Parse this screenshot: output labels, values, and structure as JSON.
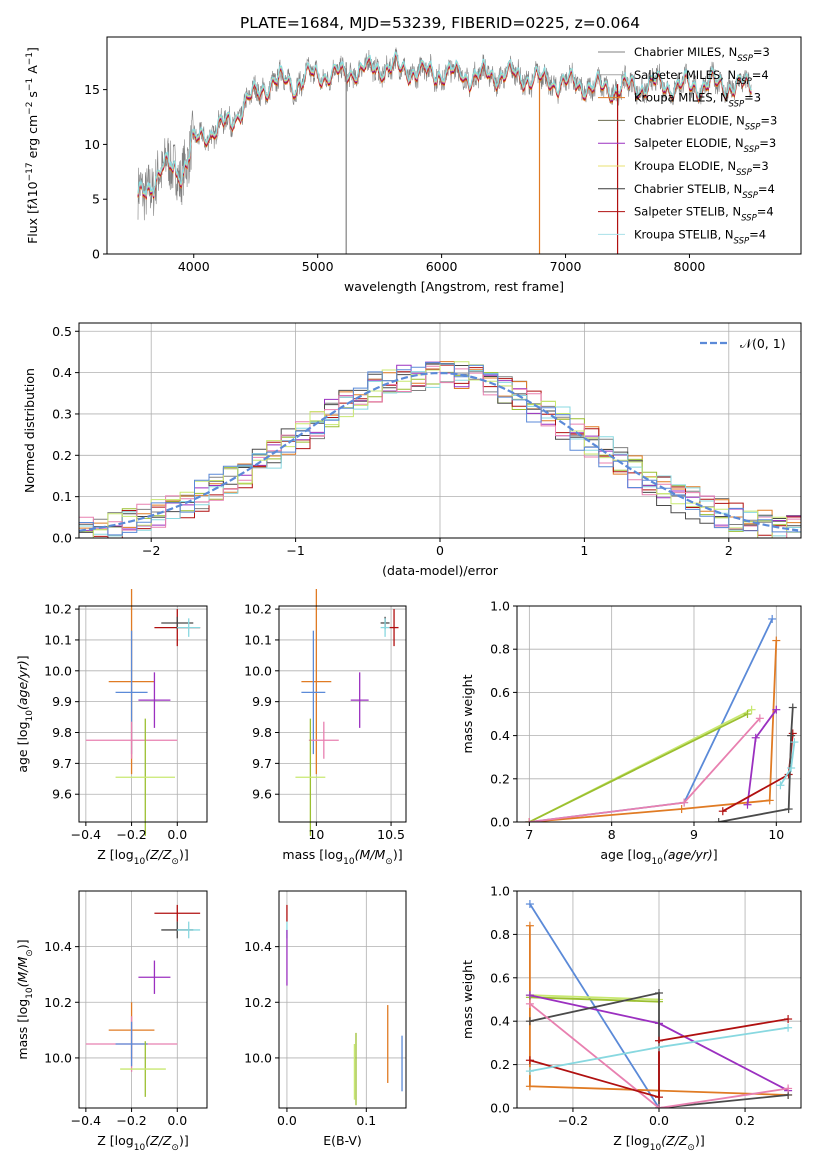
{
  "figure_title": "PLATE=1684, MJD=53239, FIBERID=0225, z=0.064",
  "models": [
    {
      "name": "Chabrier MILES, N",
      "sub": "SSP",
      "suffix": "=3",
      "color": "#808080"
    },
    {
      "name": "Salpeter MILES, N",
      "sub": "SSP",
      "suffix": "=4",
      "color": "#a6a6a6"
    },
    {
      "name": "Kroupa MILES, N",
      "sub": "SSP",
      "suffix": "=3",
      "color": "#e07b24"
    },
    {
      "name": "Chabrier ELODIE, N",
      "sub": "SSP",
      "suffix": "=3",
      "color": "#6b6b4f"
    },
    {
      "name": "Salpeter ELODIE, N",
      "sub": "SSP",
      "suffix": "=3",
      "color": "#9b30c0"
    },
    {
      "name": "Kroupa ELODIE, N",
      "sub": "SSP",
      "suffix": "=3",
      "color": "#e8e070"
    },
    {
      "name": "Chabrier STELIB, N",
      "sub": "SSP",
      "suffix": "=4",
      "color": "#3a3a3a"
    },
    {
      "name": "Salpeter STELIB, N",
      "sub": "SSP",
      "suffix": "=4",
      "color": "#b01010"
    },
    {
      "name": "Kroupa STELIB, N",
      "sub": "SSP",
      "suffix": "=4",
      "color": "#a8e0e8"
    }
  ],
  "palette": {
    "grey": "#808080",
    "orange": "#e07b24",
    "olive": "#9bbf30",
    "purple": "#9b30c0",
    "dark": "#4a4a4a",
    "red": "#b01010",
    "cyan": "#88d8e0",
    "blue": "#5b8ad8",
    "pink": "#e880b0",
    "lime": "#c8e870",
    "normal": "#5b8ad8"
  },
  "chart_data": [
    {
      "id": "spectrum",
      "type": "line",
      "xlabel": "wavelength [Angstrom, rest frame]",
      "ylabel_main": "Flux [f",
      "ylabel_tail": "10",
      "ylabel_exp": "−17",
      "ylabel_rest": " erg cm",
      "ylabel_exp2": "−2",
      "ylabel_rest2": " s",
      "ylabel_exp3": "−1",
      "ylabel_rest3": " A",
      "ylabel_exp4": "−1",
      "ylabel_end": "]",
      "xlim": [
        3300,
        8900
      ],
      "ylim": [
        0,
        19.8
      ],
      "xticks": [
        4000,
        5000,
        6000,
        7000,
        8000
      ],
      "yticks": [
        0,
        5,
        10,
        15
      ],
      "continuum": [
        [
          3550,
          5
        ],
        [
          3700,
          7
        ],
        [
          3800,
          8
        ],
        [
          3900,
          7.5
        ],
        [
          4000,
          10
        ],
        [
          4100,
          11
        ],
        [
          4200,
          11.5
        ],
        [
          4300,
          12
        ],
        [
          4400,
          13.5
        ],
        [
          4500,
          14.5
        ],
        [
          4600,
          15.5
        ],
        [
          4700,
          15.8
        ],
        [
          4800,
          15.5
        ],
        [
          4900,
          16
        ],
        [
          5000,
          16.3
        ],
        [
          5100,
          16.5
        ],
        [
          5200,
          16.2
        ],
        [
          5300,
          16.8
        ],
        [
          5400,
          16.8
        ],
        [
          5500,
          17
        ],
        [
          5600,
          17
        ],
        [
          5700,
          16.8
        ],
        [
          5800,
          16.7
        ],
        [
          5900,
          16.5
        ],
        [
          6000,
          16.6
        ],
        [
          6100,
          16.4
        ],
        [
          6200,
          16.3
        ],
        [
          6300,
          16.2
        ],
        [
          6400,
          16.3
        ],
        [
          6500,
          16.4
        ],
        [
          6600,
          16.2
        ],
        [
          6700,
          16.1
        ],
        [
          6800,
          15.8
        ],
        [
          6900,
          15.7
        ],
        [
          7000,
          15.6
        ],
        [
          7100,
          15.5
        ],
        [
          7200,
          15.2
        ],
        [
          7300,
          15.1
        ],
        [
          7400,
          15.1
        ],
        [
          7500,
          15.2
        ],
        [
          7600,
          15.3
        ],
        [
          7700,
          15.4
        ],
        [
          7800,
          15.5
        ],
        [
          7900,
          15.3
        ],
        [
          8000,
          15.3
        ],
        [
          8100,
          15.4
        ],
        [
          8200,
          15.5
        ],
        [
          8300,
          15.4
        ],
        [
          8400,
          15.2
        ],
        [
          8500,
          15.4
        ]
      ],
      "spikes": [
        [
          5230,
          0,
          17.5
        ],
        [
          6790,
          0,
          15.8
        ],
        [
          7420,
          0,
          15.5
        ]
      ]
    },
    {
      "id": "residuals",
      "type": "step",
      "xlabel": "(data-model)/error",
      "ylabel": "Normed distribution",
      "xlim": [
        -2.5,
        2.5
      ],
      "ylim": [
        0,
        0.52
      ],
      "xticks": [
        -2,
        -1,
        0,
        1,
        2
      ],
      "yticks": [
        0.0,
        0.1,
        0.2,
        0.3,
        0.4,
        0.5
      ],
      "xtick_labels": [
        "−2",
        "−1",
        "0",
        "1",
        "2"
      ],
      "legend": "𝒩(0, 1)",
      "bin_width": 0.1
    },
    {
      "id": "age_vs_Z",
      "type": "errorbar",
      "xlabel": "Z [log",
      "xlabel_sub": "10",
      "xlabel_rest": "(Z/Z",
      "ylabel": "age  [log",
      "ylabel_sub": "10",
      "ylabel_rest": "(age/yr)]",
      "xlim": [
        -0.43,
        0.13
      ],
      "ylim": [
        9.51,
        10.21
      ],
      "xticks": [
        -0.4,
        -0.2,
        0.0
      ],
      "xtick_labels": [
        "−0.4",
        "−0.2",
        "0.0"
      ],
      "yticks": [
        9.6,
        9.7,
        9.8,
        9.9,
        10.0,
        10.1,
        10.2
      ],
      "points": [
        {
          "c": "red",
          "x": 0.0,
          "y": 10.14,
          "xe": 0.1,
          "ye": 0.06
        },
        {
          "c": "dark",
          "x": 0.0,
          "y": 10.155,
          "xe": 0.07,
          "ye": 0.02
        },
        {
          "c": "cyan",
          "x": 0.05,
          "y": 10.14,
          "xe": 0.05,
          "ye": 0.03
        },
        {
          "c": "orange",
          "x": -0.2,
          "y": 9.965,
          "xe": 0.1,
          "ye": 0.3
        },
        {
          "c": "blue",
          "x": -0.2,
          "y": 9.93,
          "xe": 0.07,
          "ye": 0.2
        },
        {
          "c": "purple",
          "x": -0.1,
          "y": 9.905,
          "xe": 0.07,
          "ye": 0.09
        },
        {
          "c": "pink",
          "x": -0.2,
          "y": 9.775,
          "xe": 0.2,
          "ye": 0.06
        },
        {
          "c": "olive",
          "x": -0.14,
          "y": 9.655,
          "xe": 0.0,
          "ye": 0.19
        },
        {
          "c": "lime",
          "x": -0.14,
          "y": 9.655,
          "xe": 0.13,
          "ye": 0.0
        }
      ]
    },
    {
      "id": "age_vs_mass",
      "type": "errorbar",
      "xlabel": "mass [log",
      "xlabel_sub": "10",
      "xlabel_rest": "(M/M",
      "xlim": [
        9.75,
        10.6
      ],
      "ylim": [
        9.51,
        10.21
      ],
      "xticks": [
        10.0,
        10.5
      ],
      "yticks": [
        9.6,
        9.7,
        9.8,
        9.9,
        10.0,
        10.1,
        10.2
      ],
      "points": [
        {
          "c": "red",
          "x": 10.52,
          "y": 10.14,
          "xe": 0.03,
          "ye": 0.06
        },
        {
          "c": "dark",
          "x": 10.46,
          "y": 10.155,
          "xe": 0.03,
          "ye": 0.02
        },
        {
          "c": "cyan",
          "x": 10.46,
          "y": 10.14,
          "xe": 0.03,
          "ye": 0.03
        },
        {
          "c": "orange",
          "x": 10.0,
          "y": 9.965,
          "xe": 0.1,
          "ye": 0.3
        },
        {
          "c": "blue",
          "x": 9.98,
          "y": 9.93,
          "xe": 0.08,
          "ye": 0.2
        },
        {
          "c": "purple",
          "x": 10.29,
          "y": 9.905,
          "xe": 0.06,
          "ye": 0.09
        },
        {
          "c": "pink",
          "x": 10.05,
          "y": 9.775,
          "xe": 0.1,
          "ye": 0.06
        },
        {
          "c": "olive",
          "x": 9.96,
          "y": 9.655,
          "xe": 0.0,
          "ye": 0.19
        },
        {
          "c": "lime",
          "x": 9.96,
          "y": 9.655,
          "xe": 0.1,
          "ye": 0.0
        }
      ]
    },
    {
      "id": "mw_vs_age",
      "type": "line",
      "xlabel": "age  [log",
      "xlabel_sub": "10",
      "xlabel_rest": "(age/yr)]",
      "ylabel": "mass weight",
      "xlim": [
        6.85,
        10.3
      ],
      "ylim": [
        0,
        1.0
      ],
      "xticks": [
        7,
        8,
        9,
        10
      ],
      "yticks": [
        0.0,
        0.2,
        0.4,
        0.6,
        0.8,
        1.0
      ],
      "series": [
        {
          "c": "blue",
          "pts": [
            [
              7.0,
              0.0
            ],
            [
              8.88,
              0.09
            ],
            [
              9.95,
              0.94
            ]
          ]
        },
        {
          "c": "lime",
          "pts": [
            [
              7.0,
              0.0
            ],
            [
              9.7,
              0.52
            ]
          ]
        },
        {
          "c": "olive",
          "pts": [
            [
              7.0,
              0.0
            ],
            [
              9.65,
              0.5
            ]
          ]
        },
        {
          "c": "orange",
          "pts": [
            [
              7.0,
              0.0
            ],
            [
              8.85,
              0.06
            ],
            [
              9.92,
              0.1
            ],
            [
              10.0,
              0.84
            ]
          ]
        },
        {
          "c": "pink",
          "pts": [
            [
              7.0,
              0.0
            ],
            [
              8.88,
              0.09
            ],
            [
              9.8,
              0.48
            ]
          ]
        },
        {
          "c": "purple",
          "pts": [
            [
              9.65,
              0.08
            ],
            [
              9.75,
              0.39
            ],
            [
              10.0,
              0.52
            ]
          ]
        },
        {
          "c": "red",
          "pts": [
            [
              9.35,
              0.05
            ],
            [
              10.15,
              0.22
            ],
            [
              10.2,
              0.41
            ]
          ]
        },
        {
          "c": "dark",
          "pts": [
            [
              9.3,
              0.0
            ],
            [
              10.15,
              0.06
            ],
            [
              10.18,
              0.4
            ],
            [
              10.2,
              0.53
            ]
          ]
        },
        {
          "c": "cyan",
          "pts": [
            [
              10.05,
              0.17
            ],
            [
              10.18,
              0.25
            ],
            [
              10.22,
              0.37
            ]
          ]
        }
      ]
    },
    {
      "id": "mass_vs_Z",
      "type": "errorbar",
      "xlabel": "Z [log",
      "xlabel_sub": "10",
      "xlabel_rest": "(Z/Z",
      "ylabel": "mass [log",
      "ylabel_sub": "10",
      "ylabel_rest": "(M/M",
      "xlim": [
        -0.43,
        0.13
      ],
      "ylim": [
        9.82,
        10.6
      ],
      "xticks": [
        -0.4,
        -0.2,
        0.0
      ],
      "xtick_labels": [
        "−0.4",
        "−0.2",
        "0.0"
      ],
      "yticks": [
        10.0,
        10.2,
        10.4
      ],
      "points": [
        {
          "c": "red",
          "x": 0.0,
          "y": 10.52,
          "xe": 0.1,
          "ye": 0.03
        },
        {
          "c": "dark",
          "x": 0.0,
          "y": 10.46,
          "xe": 0.07,
          "ye": 0.03
        },
        {
          "c": "cyan",
          "x": 0.05,
          "y": 10.46,
          "xe": 0.05,
          "ye": 0.03
        },
        {
          "c": "purple",
          "x": -0.1,
          "y": 10.29,
          "xe": 0.07,
          "ye": 0.06
        },
        {
          "c": "orange",
          "x": -0.2,
          "y": 10.1,
          "xe": 0.1,
          "ye": 0.1
        },
        {
          "c": "pink",
          "x": -0.2,
          "y": 10.05,
          "xe": 0.2,
          "ye": 0.1
        },
        {
          "c": "blue",
          "x": -0.2,
          "y": 10.05,
          "xe": 0.07,
          "ye": 0.08
        },
        {
          "c": "olive",
          "x": -0.14,
          "y": 9.96,
          "xe": 0.0,
          "ye": 0.1
        },
        {
          "c": "lime",
          "x": -0.15,
          "y": 9.96,
          "xe": 0.1,
          "ye": 0.0
        }
      ]
    },
    {
      "id": "mass_vs_EBV",
      "type": "errorbar",
      "xlabel": "E(B-V)",
      "xlim": [
        -0.01,
        0.15
      ],
      "ylim": [
        9.82,
        10.6
      ],
      "xticks": [
        0.0,
        0.1
      ],
      "yticks": [
        10.0,
        10.2,
        10.4
      ],
      "points": [
        {
          "c": "red",
          "x": 0.0,
          "y": 10.52,
          "xe": 0.0,
          "ye": 0.03
        },
        {
          "c": "cyan",
          "x": 0.0,
          "y": 10.46,
          "xe": 0.0,
          "ye": 0.03
        },
        {
          "c": "purple",
          "x": 0.0,
          "y": 10.36,
          "xe": 0.0,
          "ye": 0.1
        },
        {
          "c": "orange",
          "x": 0.127,
          "y": 10.05,
          "xe": 0.0,
          "ye": 0.14
        },
        {
          "c": "blue",
          "x": 0.145,
          "y": 9.98,
          "xe": 0.0,
          "ye": 0.1
        },
        {
          "c": "olive",
          "x": 0.087,
          "y": 9.96,
          "xe": 0.0,
          "ye": 0.13
        },
        {
          "c": "lime",
          "x": 0.085,
          "y": 9.95,
          "xe": 0.0,
          "ye": 0.1
        }
      ]
    },
    {
      "id": "mw_vs_Z",
      "type": "line",
      "xlabel": "Z [log",
      "xlabel_sub": "10",
      "xlabel_rest": "(Z/Z",
      "ylabel": "mass weight",
      "xlim": [
        -0.33,
        0.33
      ],
      "ylim": [
        0,
        1.0
      ],
      "xticks": [
        -0.2,
        0.0,
        0.2
      ],
      "xtick_labels": [
        "−0.2",
        "0.0",
        "0.2"
      ],
      "yticks": [
        0.0,
        0.2,
        0.4,
        0.6,
        0.8,
        1.0
      ],
      "series": [
        {
          "c": "blue",
          "pts": [
            [
              -0.3,
              0.94
            ],
            [
              0.0,
              0.0
            ]
          ]
        },
        {
          "c": "orange",
          "pts": [
            [
              -0.3,
              0.84
            ],
            [
              -0.3,
              0.1
            ],
            [
              0.0,
              0.08
            ],
            [
              0.3,
              0.06
            ]
          ]
        },
        {
          "c": "lime",
          "pts": [
            [
              -0.3,
              0.52
            ],
            [
              0.0,
              0.5
            ]
          ]
        },
        {
          "c": "olive",
          "pts": [
            [
              -0.3,
              0.51
            ],
            [
              0.0,
              0.49
            ]
          ]
        },
        {
          "c": "purple",
          "pts": [
            [
              -0.3,
              0.52
            ],
            [
              0.0,
              0.39
            ],
            [
              0.3,
              0.08
            ]
          ]
        },
        {
          "c": "dark",
          "pts": [
            [
              -0.3,
              0.4
            ],
            [
              0.0,
              0.53
            ],
            [
              0.0,
              0.0
            ],
            [
              0.3,
              0.06
            ]
          ]
        },
        {
          "c": "pink",
          "pts": [
            [
              -0.3,
              0.48
            ],
            [
              0.0,
              0.0
            ],
            [
              0.3,
              0.09
            ]
          ]
        },
        {
          "c": "red",
          "pts": [
            [
              -0.3,
              0.22
            ],
            [
              0.0,
              0.05
            ],
            [
              0.0,
              0.31
            ],
            [
              0.3,
              0.41
            ]
          ]
        },
        {
          "c": "cyan",
          "pts": [
            [
              -0.3,
              0.17
            ],
            [
              0.0,
              0.28
            ],
            [
              0.3,
              0.37
            ]
          ]
        }
      ]
    }
  ]
}
